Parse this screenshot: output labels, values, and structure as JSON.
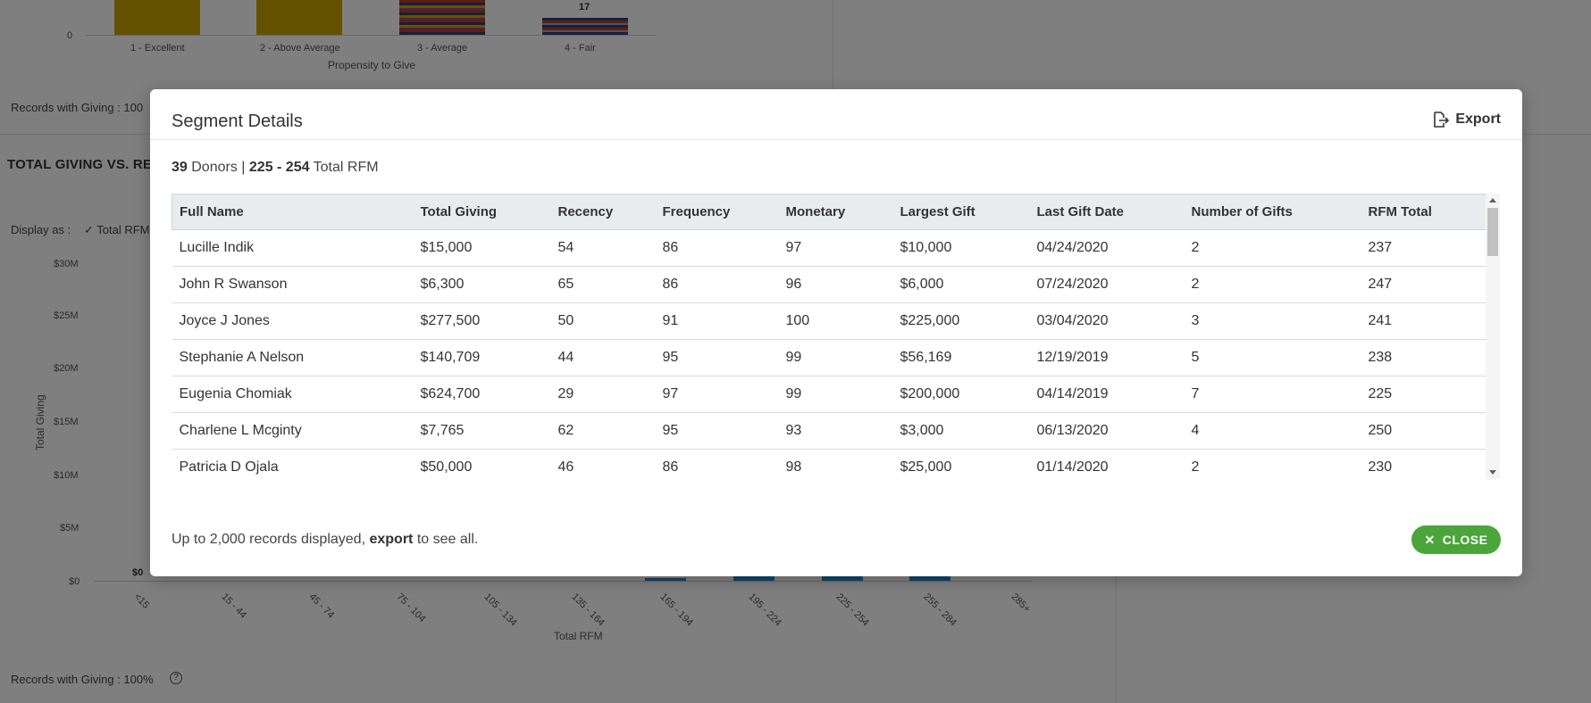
{
  "background": {
    "top_chart": {
      "y_tick": "0",
      "categories": [
        "1 - Excellent",
        "2 - Above Average",
        "3 - Average",
        "4 - Fair"
      ],
      "bar_label": "17",
      "xlabel": "Propensity to Give"
    },
    "records_top": "Records with Giving : 100",
    "section_title": "TOTAL GIVING VS. REC",
    "display_as_label": "Display as :",
    "display_option": "Total RFM",
    "bottom_chart": {
      "ylabel": "Total Giving",
      "y_ticks": [
        "$30M",
        "$25M",
        "$20M",
        "$15M",
        "$10M",
        "$5M",
        "$0"
      ],
      "zero_label": "$0",
      "x_ticks": [
        "<15",
        "15 - 44",
        "45 - 74",
        "75 - 104",
        "105 - 134",
        "135 - 164",
        "165 - 194",
        "195 - 224",
        "225 - 254",
        "255 - 284",
        "285+"
      ],
      "xlabel": "Total RFM"
    },
    "records_bottom": "Records with Giving : 100%",
    "colors": {
      "gold": "#c9a200",
      "blue": "#1f8dd6",
      "red": "#c0392b",
      "navy": "#2c3e78"
    }
  },
  "modal": {
    "title": "Segment Details",
    "export_label": "Export",
    "summary": {
      "donors_count": "39",
      "donors_label": "Donors |",
      "range": "225 - 254",
      "range_label": "Total RFM"
    },
    "columns": [
      "Full Name",
      "Total Giving",
      "Recency",
      "Frequency",
      "Monetary",
      "Largest Gift",
      "Last Gift Date",
      "Number of Gifts",
      "RFM Total"
    ],
    "rows": [
      [
        "Lucille Indik",
        "$15,000",
        "54",
        "86",
        "97",
        "$10,000",
        "04/24/2020",
        "2",
        "237"
      ],
      [
        "John R Swanson",
        "$6,300",
        "65",
        "86",
        "96",
        "$6,000",
        "07/24/2020",
        "2",
        "247"
      ],
      [
        "Joyce J Jones",
        "$277,500",
        "50",
        "91",
        "100",
        "$225,000",
        "03/04/2020",
        "3",
        "241"
      ],
      [
        "Stephanie A Nelson",
        "$140,709",
        "44",
        "95",
        "99",
        "$56,169",
        "12/19/2019",
        "5",
        "238"
      ],
      [
        "Eugenia Chomiak",
        "$624,700",
        "29",
        "97",
        "99",
        "$200,000",
        "04/14/2019",
        "7",
        "225"
      ],
      [
        "Charlene L Mcginty",
        "$7,765",
        "62",
        "95",
        "93",
        "$3,000",
        "06/13/2020",
        "4",
        "250"
      ],
      [
        "Patricia D Ojala",
        "$50,000",
        "46",
        "86",
        "98",
        "$25,000",
        "01/14/2020",
        "2",
        "230"
      ]
    ],
    "footer": {
      "prefix": "Up to 2,000 records displayed,",
      "link": "export",
      "suffix": "to see all."
    },
    "close_label": "CLOSE",
    "accent_color": "#4aa63a"
  }
}
